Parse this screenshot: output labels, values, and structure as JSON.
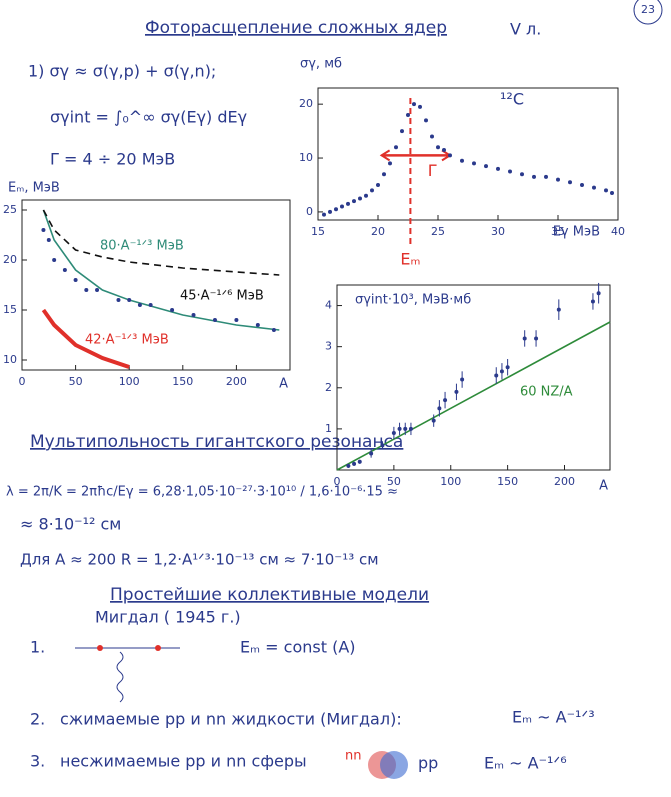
{
  "page_number": "23",
  "title": "Фоторасщепление сложных ядер",
  "lecture": "V л.",
  "formulas": [
    "1)  σγ ≈ σ(γ,p) + σ(γ,n);",
    "σγint = ∫₀^∞ σγ(Eγ) dEγ",
    "Γ = 4 ÷ 20 МэВ"
  ],
  "section1": {
    "heading": "Мультипольность гигантского резонанса",
    "lines": [
      "λ = 2π/K = 2πħc/Eγ = 6,28·1,05·10⁻²⁷·3·10¹⁰ / 1,6·10⁻⁶·15 ≈",
      "≈ 8·10⁻¹² см",
      "Для   A ≈ 200      R = 1,2·A¹ᐟ³·10⁻¹³ см ≈ 7·10⁻¹³ см"
    ]
  },
  "section2": {
    "heading": "Простейшие коллективные модели",
    "author": "Мигдал ( 1945 г.)",
    "items": [
      {
        "number": "1.",
        "formula": "Eₘ = const (A)"
      },
      {
        "number": "2.",
        "text": "сжимаемые   pp  и  nn  жидкости   (Мигдал):",
        "formula": "Eₘ ~ A⁻¹ᐟ³"
      },
      {
        "number": "3.",
        "text": "несжимаемые  pp  и  nn  сферы",
        "labels": [
          "nn",
          "pp"
        ],
        "formula": "Eₘ ~ A⁻¹ᐟ⁶"
      }
    ]
  },
  "chart_data": [
    {
      "type": "scatter",
      "ylabel": "σγ, мб",
      "xlabel": "Eγ  МэВ",
      "annotations": [
        "¹²C"
      ],
      "xlim": [
        15,
        40
      ],
      "xticks": [
        15,
        20,
        25,
        30,
        35,
        40
      ],
      "ylim": [
        -1.5,
        23
      ],
      "yticks": [
        0,
        10,
        20
      ],
      "marker": {
        "label": "Eₘ",
        "x": 22.7,
        "color": "#e0302a"
      },
      "span": {
        "label": "Γ",
        "range": [
          20.3,
          26
        ],
        "y": 10.5,
        "color": "#e0302a"
      },
      "series": [
        {
          "color": "#2b3a8c",
          "style": "points",
          "x": [
            15.5,
            16,
            16.5,
            17,
            17.5,
            18,
            18.5,
            19,
            19.5,
            20,
            20.5,
            21,
            21.5,
            22,
            22.5,
            23,
            23.5,
            24,
            24.5,
            25,
            25.5,
            26,
            27,
            28,
            29,
            30,
            31,
            32,
            33,
            34,
            35,
            36,
            37,
            38,
            39,
            39.5
          ],
          "values": [
            -0.5,
            0,
            0.5,
            1,
            1.5,
            2,
            2.5,
            3,
            4,
            5,
            7,
            9,
            12,
            15,
            18,
            20,
            19.5,
            17,
            14,
            12,
            11.5,
            10.5,
            9.5,
            9,
            8.5,
            8,
            7.5,
            7,
            6.5,
            6.5,
            6,
            5.5,
            5,
            4.5,
            4,
            3.5
          ]
        }
      ]
    },
    {
      "type": "line",
      "ylabel": "Eₘ, МэВ",
      "xlabel": "A",
      "xlim": [
        0,
        250
      ],
      "xticks": [
        0,
        50,
        100,
        150,
        200
      ],
      "ylim": [
        9,
        26
      ],
      "yticks": [
        10,
        15,
        20,
        25
      ],
      "series": [
        {
          "name": "80·A⁻¹ᐟ³ МэВ",
          "color": "#2e8b78",
          "style": "solid",
          "x": [
            20,
            30,
            50,
            75,
            100,
            150,
            200,
            240
          ],
          "values": [
            25,
            22,
            19,
            17,
            16,
            14.5,
            13.5,
            13
          ]
        },
        {
          "name": "45·A⁻¹ᐟ⁶ МэВ",
          "color": "#111111",
          "style": "dashed",
          "x": [
            20,
            30,
            50,
            75,
            100,
            150,
            200,
            240
          ],
          "values": [
            25,
            23,
            21,
            20.3,
            19.8,
            19.2,
            18.8,
            18.5
          ]
        },
        {
          "name": "42·A⁻¹ᐟ³ МэВ",
          "color": "#e0302a",
          "style": "thick",
          "x": [
            20,
            30,
            50,
            75,
            100
          ],
          "values": [
            15,
            13.5,
            11.5,
            10.2,
            9.3
          ]
        },
        {
          "color": "#2b3a8c",
          "style": "points",
          "x": [
            20,
            25,
            30,
            40,
            50,
            60,
            70,
            90,
            100,
            110,
            120,
            140,
            160,
            180,
            200,
            220,
            235
          ],
          "values": [
            23,
            22,
            20,
            19,
            18,
            17,
            17,
            16,
            16,
            15.5,
            15.5,
            15,
            14.5,
            14,
            14,
            13.5,
            13
          ]
        }
      ]
    },
    {
      "type": "scatter",
      "ylabel": "σγint·10³, МэВ·мб",
      "xlabel": "A",
      "xlim": [
        0,
        240
      ],
      "xticks": [
        0,
        50,
        100,
        150,
        200
      ],
      "ylim": [
        0,
        4.5
      ],
      "yticks": [
        1,
        2,
        3,
        4
      ],
      "series": [
        {
          "name": "60 NZ/A",
          "color": "#2e8b3a",
          "style": "solid",
          "x": [
            0,
            240
          ],
          "values": [
            0,
            3.6
          ]
        },
        {
          "color": "#2b3a8c",
          "style": "points",
          "x": [
            10,
            15,
            20,
            30,
            40,
            50,
            55,
            60,
            65,
            85,
            90,
            95,
            105,
            110,
            140,
            145,
            150,
            165,
            175,
            195,
            225,
            230
          ],
          "values": [
            0.1,
            0.15,
            0.2,
            0.4,
            0.6,
            0.9,
            1,
            1,
            1,
            1.2,
            1.5,
            1.7,
            1.9,
            2.2,
            2.3,
            2.4,
            2.5,
            3.2,
            3.2,
            3.9,
            4.1,
            4.3
          ],
          "errors": [
            0.05,
            0.05,
            0.05,
            0.1,
            0.1,
            0.15,
            0.15,
            0.15,
            0.15,
            0.15,
            0.2,
            0.2,
            0.2,
            0.2,
            0.2,
            0.2,
            0.2,
            0.2,
            0.2,
            0.25,
            0.2,
            0.25
          ]
        }
      ]
    }
  ]
}
